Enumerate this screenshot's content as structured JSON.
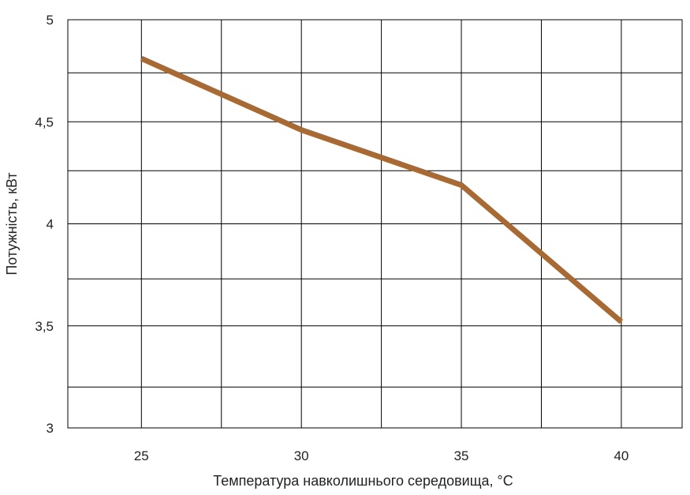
{
  "chart_data": {
    "type": "line",
    "xlabel": "Температура навколишнього середовища, °C",
    "ylabel": "Потужність, кВт",
    "xlim": [
      22.7,
      41.9
    ],
    "ylim": [
      3,
      5
    ],
    "x_ticks": [
      {
        "value": 25,
        "label": "25"
      },
      {
        "value": 30,
        "label": "30"
      },
      {
        "value": 35,
        "label": "35"
      },
      {
        "value": 40,
        "label": "40"
      }
    ],
    "y_ticks": [
      {
        "value": 3,
        "label": "3"
      },
      {
        "value": 3.5,
        "label": "3,5"
      },
      {
        "value": 4,
        "label": "4"
      },
      {
        "value": 4.5,
        "label": "4,5"
      },
      {
        "value": 5,
        "label": "5"
      }
    ],
    "x_grid": [
      25,
      27.5,
      30,
      32.5,
      35,
      37.5,
      40
    ],
    "y_grid": [
      3.2,
      3.5,
      3.73,
      4,
      4.26,
      4.5,
      4.74
    ],
    "grid": true,
    "line_color": "#a86a34",
    "series": [
      {
        "x": [
          25,
          30,
          35,
          40
        ],
        "y": [
          4.81,
          4.46,
          4.19,
          3.52
        ]
      }
    ]
  }
}
